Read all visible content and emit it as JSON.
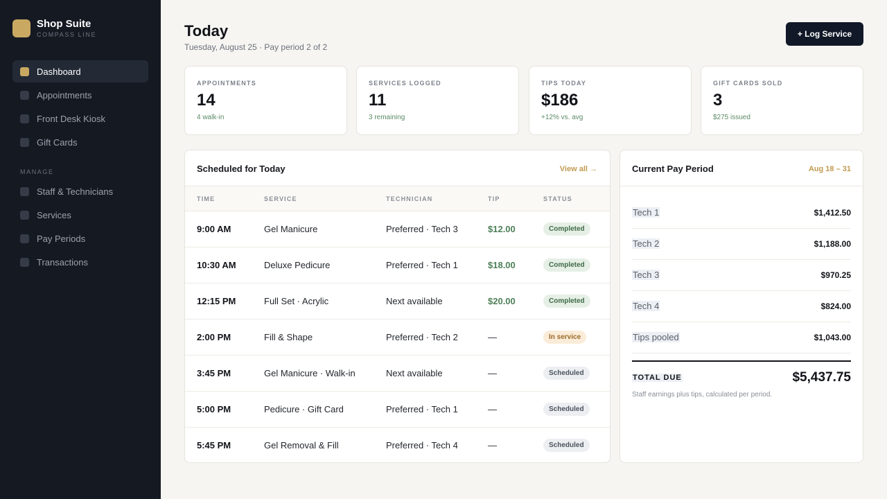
{
  "brand": {
    "name": "Shop Suite",
    "subtitle": "COMPASS LINE"
  },
  "nav": {
    "main": [
      {
        "label": "Dashboard",
        "active": true
      },
      {
        "label": "Appointments",
        "active": false
      },
      {
        "label": "Front Desk Kiosk",
        "active": false
      },
      {
        "label": "Gift Cards",
        "active": false
      }
    ],
    "section_label": "MANAGE",
    "manage": [
      {
        "label": "Staff & Technicians"
      },
      {
        "label": "Services"
      },
      {
        "label": "Pay Periods"
      },
      {
        "label": "Transactions"
      }
    ]
  },
  "header": {
    "title": "Today",
    "subtitle": "Tuesday, August 25 · Pay period 2 of 2",
    "action_label": "+ Log Service"
  },
  "stats": [
    {
      "label": "APPOINTMENTS",
      "value": "14",
      "note": "4 walk-in"
    },
    {
      "label": "SERVICES LOGGED",
      "value": "11",
      "note": "3 remaining"
    },
    {
      "label": "TIPS TODAY",
      "value": "$186",
      "note": "+12% vs. avg"
    },
    {
      "label": "GIFT CARDS SOLD",
      "value": "3",
      "note": "$275 issued"
    }
  ],
  "schedule": {
    "title": "Scheduled for Today",
    "link": "View all →",
    "columns": {
      "time": "TIME",
      "service": "SERVICE",
      "technician": "TECHNICIAN",
      "tip": "TIP",
      "status": "STATUS"
    },
    "rows": [
      {
        "time": "9:00 AM",
        "service": "Gel Manicure",
        "technician": "Preferred · Tech 3",
        "tip": "$12.00",
        "status": "Completed"
      },
      {
        "time": "10:30 AM",
        "service": "Deluxe Pedicure",
        "technician": "Preferred · Tech 1",
        "tip": "$18.00",
        "status": "Completed"
      },
      {
        "time": "12:15 PM",
        "service": "Full Set · Acrylic",
        "technician": "Next available",
        "tip": "$20.00",
        "status": "Completed"
      },
      {
        "time": "2:00 PM",
        "service": "Fill & Shape",
        "technician": "Preferred · Tech 2",
        "tip": "—",
        "status": "In service"
      },
      {
        "time": "3:45 PM",
        "service": "Gel Manicure · Walk-in",
        "technician": "Next available",
        "tip": "—",
        "status": "Scheduled"
      },
      {
        "time": "5:00 PM",
        "service": "Pedicure · Gift Card",
        "technician": "Preferred · Tech 1",
        "tip": "—",
        "status": "Scheduled"
      },
      {
        "time": "5:45 PM",
        "service": "Gel Removal & Fill",
        "technician": "Preferred · Tech 4",
        "tip": "—",
        "status": "Scheduled"
      }
    ]
  },
  "pay_period": {
    "title": "Current Pay Period",
    "range": "Aug 18 – 31",
    "rows": [
      {
        "name": "Tech 1",
        "amount": "$1,412.50"
      },
      {
        "name": "Tech 2",
        "amount": "$1,188.00"
      },
      {
        "name": "Tech 3",
        "amount": "$970.25"
      },
      {
        "name": "Tech 4",
        "amount": "$824.00"
      },
      {
        "name": "Tips pooled",
        "amount": "$1,043.00"
      }
    ],
    "total_label": "TOTAL DUE",
    "total_amount": "$5,437.75",
    "note": "Staff earnings plus tips, calculated per period."
  },
  "colors": {
    "sidebar_bg": "#151922",
    "accent": "#c9a961",
    "status_completed": "#3f6a47",
    "status_in_service": "#9a6a2a",
    "status_scheduled": "#4b525d"
  },
  "icons": {
    "brand_logo": "brand-logo-icon",
    "nav_item": "nav-square-icon"
  }
}
